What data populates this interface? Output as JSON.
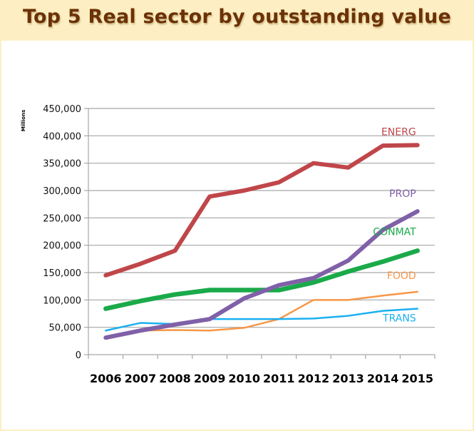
{
  "title": "Top 5 Real sector by outstanding value",
  "chart_data": {
    "type": "line",
    "title": "Top 5 Real sector by outstanding value",
    "xlabel": "",
    "ylabel": "Millions",
    "ylim": [
      0,
      450000
    ],
    "yticks": [
      0,
      50000,
      100000,
      150000,
      200000,
      250000,
      300000,
      350000,
      400000,
      450000
    ],
    "ytick_labels": [
      "0",
      "50,000",
      "100,000",
      "150,000",
      "200,000",
      "250,000",
      "300,000",
      "350,000",
      "400,000",
      "450,000"
    ],
    "grid": true,
    "legend": "inline labels at line ends (right)",
    "categories": [
      "2006",
      "2007",
      "2008",
      "2009",
      "2010",
      "2011",
      "2012",
      "2013",
      "2014",
      "2015"
    ],
    "series": [
      {
        "name": "ENERG",
        "color": "#c0464a",
        "values": [
          145000,
          166000,
          190000,
          289000,
          300000,
          315000,
          350000,
          342000,
          382000,
          383000
        ]
      },
      {
        "name": "PROP",
        "color": "#8060a8",
        "values": [
          31000,
          44000,
          55000,
          65000,
          103000,
          127000,
          140000,
          172000,
          228000,
          262000
        ]
      },
      {
        "name": "CONMAT",
        "color": "#1aaa4a",
        "values": [
          84000,
          98000,
          110000,
          118000,
          118000,
          118000,
          132000,
          152000,
          170000,
          190000
        ]
      },
      {
        "name": "FOOD",
        "color": "#f79646",
        "values": [
          33000,
          44000,
          45000,
          44000,
          49000,
          65000,
          100000,
          100000,
          108000,
          115000
        ]
      },
      {
        "name": "TRANS",
        "color": "#1ab0f0",
        "values": [
          44000,
          58000,
          56000,
          65000,
          65000,
          65000,
          66000,
          71000,
          80000,
          84000
        ]
      }
    ]
  }
}
